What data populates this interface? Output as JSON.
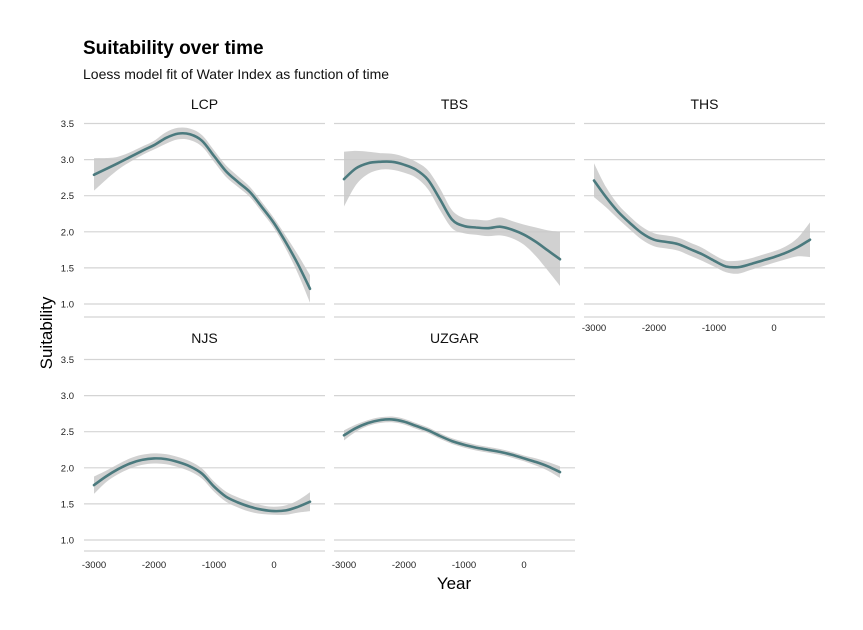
{
  "chart_data": {
    "type": "line",
    "title": "Suitability over time",
    "subtitle": "Loess model fit of Water Index as function of time",
    "xlabel": "Year",
    "ylabel": "Suitability",
    "xlim": [
      -3000,
      700
    ],
    "ylim": [
      1.0,
      3.5
    ],
    "x_ticks": [
      -3000,
      -2000,
      -1000,
      0
    ],
    "x_tick_labels": [
      "-3000",
      "-2000",
      "-1000",
      "0"
    ],
    "y_ticks": [
      1.0,
      1.5,
      2.0,
      2.5,
      3.0,
      3.5
    ],
    "y_tick_labels": [
      "1.0",
      "1.5",
      "2.0",
      "2.5",
      "3.0",
      "3.5"
    ],
    "grid": "horizontal",
    "line_color": "#4b7a7e",
    "band_color": "#c9c9c9",
    "panels": [
      {
        "name": "LCP",
        "x": [
          -3000,
          -2600,
          -2200,
          -2000,
          -1800,
          -1600,
          -1400,
          -1200,
          -1000,
          -800,
          -600,
          -400,
          -200,
          0,
          200,
          400,
          600
        ],
        "y": [
          2.79,
          2.95,
          3.12,
          3.2,
          3.3,
          3.36,
          3.35,
          3.26,
          3.05,
          2.84,
          2.69,
          2.55,
          2.34,
          2.12,
          1.85,
          1.55,
          1.21
        ],
        "lower": [
          2.57,
          2.86,
          3.06,
          3.14,
          3.22,
          3.28,
          3.27,
          3.18,
          2.97,
          2.76,
          2.62,
          2.48,
          2.27,
          2.05,
          1.76,
          1.42,
          1.02
        ],
        "upper": [
          3.02,
          3.04,
          3.18,
          3.26,
          3.38,
          3.44,
          3.43,
          3.34,
          3.13,
          2.92,
          2.77,
          2.62,
          2.41,
          2.19,
          1.94,
          1.68,
          1.4
        ]
      },
      {
        "name": "TBS",
        "x": [
          -3000,
          -2800,
          -2600,
          -2400,
          -2200,
          -2000,
          -1800,
          -1600,
          -1400,
          -1200,
          -1000,
          -800,
          -600,
          -400,
          -200,
          0,
          200,
          400,
          600
        ],
        "y": [
          2.73,
          2.88,
          2.95,
          2.97,
          2.97,
          2.93,
          2.86,
          2.72,
          2.45,
          2.17,
          2.08,
          2.06,
          2.05,
          2.07,
          2.03,
          1.96,
          1.86,
          1.74,
          1.62
        ],
        "lower": [
          2.35,
          2.65,
          2.8,
          2.86,
          2.86,
          2.82,
          2.75,
          2.59,
          2.3,
          2.05,
          1.98,
          1.96,
          1.94,
          1.95,
          1.91,
          1.82,
          1.66,
          1.46,
          1.25
        ],
        "upper": [
          3.11,
          3.12,
          3.11,
          3.09,
          3.08,
          3.04,
          2.97,
          2.85,
          2.6,
          2.3,
          2.19,
          2.17,
          2.16,
          2.2,
          2.15,
          2.1,
          2.06,
          2.02,
          2.0
        ]
      },
      {
        "name": "THS",
        "x": [
          -3000,
          -2800,
          -2600,
          -2400,
          -2200,
          -2000,
          -1800,
          -1600,
          -1400,
          -1200,
          -1000,
          -800,
          -600,
          -400,
          -200,
          0,
          200,
          400,
          600
        ],
        "y": [
          2.71,
          2.48,
          2.28,
          2.12,
          1.98,
          1.89,
          1.86,
          1.83,
          1.76,
          1.69,
          1.6,
          1.52,
          1.51,
          1.55,
          1.6,
          1.65,
          1.71,
          1.79,
          1.89
        ],
        "lower": [
          2.48,
          2.34,
          2.18,
          2.03,
          1.89,
          1.8,
          1.77,
          1.74,
          1.67,
          1.6,
          1.52,
          1.44,
          1.42,
          1.47,
          1.52,
          1.57,
          1.62,
          1.66,
          1.65
        ],
        "upper": [
          2.95,
          2.62,
          2.38,
          2.21,
          2.07,
          1.98,
          1.95,
          1.92,
          1.85,
          1.78,
          1.68,
          1.6,
          1.6,
          1.63,
          1.68,
          1.73,
          1.8,
          1.92,
          2.13
        ]
      },
      {
        "name": "NJS",
        "x": [
          -3000,
          -2800,
          -2600,
          -2400,
          -2200,
          -2000,
          -1800,
          -1600,
          -1400,
          -1200,
          -1000,
          -800,
          -600,
          -400,
          -200,
          0,
          200,
          400,
          600
        ],
        "y": [
          1.76,
          1.88,
          1.98,
          2.06,
          2.11,
          2.13,
          2.12,
          2.08,
          2.02,
          1.92,
          1.74,
          1.6,
          1.52,
          1.46,
          1.42,
          1.4,
          1.41,
          1.46,
          1.53
        ],
        "lower": [
          1.64,
          1.8,
          1.91,
          1.99,
          2.04,
          2.06,
          2.05,
          2.01,
          1.95,
          1.85,
          1.67,
          1.53,
          1.45,
          1.39,
          1.36,
          1.35,
          1.35,
          1.38,
          1.4
        ],
        "upper": [
          1.88,
          1.96,
          2.05,
          2.13,
          2.18,
          2.2,
          2.19,
          2.15,
          2.09,
          1.99,
          1.81,
          1.67,
          1.59,
          1.53,
          1.48,
          1.46,
          1.48,
          1.55,
          1.66
        ]
      },
      {
        "name": "UZGAR",
        "x": [
          -3000,
          -2800,
          -2600,
          -2400,
          -2200,
          -2000,
          -1800,
          -1600,
          -1400,
          -1200,
          -1000,
          -800,
          -600,
          -400,
          -200,
          0,
          200,
          400,
          600
        ],
        "y": [
          2.45,
          2.55,
          2.62,
          2.66,
          2.67,
          2.64,
          2.58,
          2.52,
          2.44,
          2.37,
          2.32,
          2.28,
          2.25,
          2.22,
          2.18,
          2.13,
          2.08,
          2.02,
          1.94
        ],
        "lower": [
          2.38,
          2.5,
          2.58,
          2.62,
          2.63,
          2.6,
          2.54,
          2.48,
          2.4,
          2.33,
          2.28,
          2.24,
          2.21,
          2.18,
          2.14,
          2.09,
          2.03,
          1.96,
          1.86
        ],
        "upper": [
          2.52,
          2.6,
          2.66,
          2.7,
          2.71,
          2.68,
          2.62,
          2.56,
          2.48,
          2.41,
          2.36,
          2.32,
          2.29,
          2.26,
          2.22,
          2.17,
          2.13,
          2.08,
          2.02
        ]
      }
    ]
  }
}
